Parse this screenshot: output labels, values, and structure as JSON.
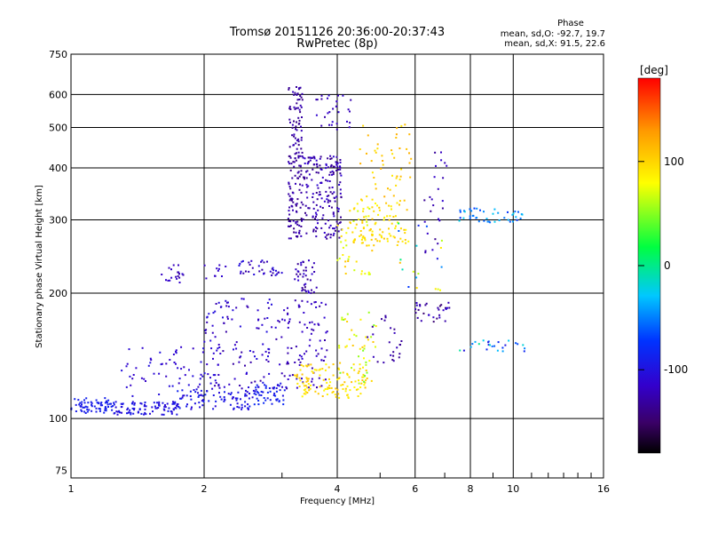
{
  "chart_data": {
    "type": "scatter",
    "title": "Tromsø 20151126 20:36:00-20:37:43",
    "subtitle": "RwPretec (8p)",
    "xlabel": "Frequency [MHz]",
    "ylabel": "Stationary phase Virtual Height [km]",
    "x_scale": "log",
    "y_scale": "log",
    "xlim": [
      1,
      16
    ],
    "ylim": [
      72,
      750
    ],
    "x_ticks": [
      1,
      2,
      4,
      6,
      8,
      10,
      16
    ],
    "y_ticks": [
      75,
      100,
      200,
      300,
      400,
      500,
      600,
      750
    ],
    "x_minor_ticks": [
      3,
      5,
      7,
      9,
      11,
      12,
      13,
      14,
      15
    ],
    "grid": true,
    "stats": {
      "heading": "Phase",
      "line_o": "mean, sd,O: -92.7, 19.7",
      "line_x": "mean, sd,X:  91.5, 22.6"
    },
    "colorbar": {
      "label": "[deg]",
      "range": [
        -180,
        180
      ],
      "ticks": [
        100,
        0,
        -100
      ]
    },
    "series": [
      {
        "clusters": [
          {
            "x": [
              1.0,
              1.25
            ],
            "y": [
              103,
              112
            ],
            "phase": [
              -85,
              -95
            ],
            "n": 70
          },
          {
            "x": [
              1.25,
              1.75
            ],
            "y": [
              102,
              110
            ],
            "phase": [
              -90,
              -110
            ],
            "n": 90
          },
          {
            "x": [
              1.7,
              2.6
            ],
            "y": [
              105,
              118
            ],
            "phase": [
              -85,
              -110
            ],
            "n": 90
          },
          {
            "x": [
              2.6,
              3.1
            ],
            "y": [
              108,
              122
            ],
            "phase": [
              -80,
              -100
            ],
            "n": 50
          },
          {
            "x": [
              1.3,
              2.2
            ],
            "y": [
              112,
              150
            ],
            "phase": [
              -100,
              -120
            ],
            "n": 70
          },
          {
            "x": [
              2.0,
              3.0
            ],
            "y": [
              118,
              195
            ],
            "phase": [
              -100,
              -130
            ],
            "n": 110
          },
          {
            "x": [
              3.0,
              3.8
            ],
            "y": [
              118,
              195
            ],
            "phase": [
              -110,
              -130
            ],
            "n": 90
          },
          {
            "x": [
              3.1,
              3.35
            ],
            "y": [
              270,
              630
            ],
            "phase": [
              -120,
              -140
            ],
            "n": 160
          },
          {
            "x": [
              3.35,
              4.1
            ],
            "y": [
              270,
              430
            ],
            "phase": [
              -110,
              -140
            ],
            "n": 180
          },
          {
            "x": [
              3.5,
              4.3
            ],
            "y": [
              490,
              600
            ],
            "phase": [
              -110,
              -130
            ],
            "n": 30
          },
          {
            "x": [
              3.2,
              3.6
            ],
            "y": [
              200,
              240
            ],
            "phase": [
              -110,
              -140
            ],
            "n": 40
          },
          {
            "x": [
              1.6,
              1.8
            ],
            "y": [
              210,
              235
            ],
            "phase": [
              -110,
              -130
            ],
            "n": 20
          },
          {
            "x": [
              2.0,
              2.25
            ],
            "y": [
              215,
              235
            ],
            "phase": [
              -110,
              -120
            ],
            "n": 10
          },
          {
            "x": [
              2.4,
              3.0
            ],
            "y": [
              220,
              240
            ],
            "phase": [
              -100,
              -130
            ],
            "n": 35
          },
          {
            "x": [
              3.2,
              4.7
            ],
            "y": [
              112,
              135
            ],
            "phase": [
              80,
              110
            ],
            "n": 120
          },
          {
            "x": [
              4.0,
              4.9
            ],
            "y": [
              120,
              180
            ],
            "phase": [
              40,
              110
            ],
            "n": 45
          },
          {
            "x": [
              4.3,
              5.8
            ],
            "y": [
              260,
              330
            ],
            "phase": [
              80,
              110
            ],
            "n": 90
          },
          {
            "x": [
              4.5,
              5.9
            ],
            "y": [
              330,
              520
            ],
            "phase": [
              90,
              120
            ],
            "n": 50
          },
          {
            "x": [
              4.0,
              4.8
            ],
            "y": [
              220,
              330
            ],
            "phase": [
              60,
              110
            ],
            "n": 45
          },
          {
            "x": [
              6.0,
              7.2
            ],
            "y": [
              170,
              190
            ],
            "phase": [
              -110,
              -150
            ],
            "n": 30
          },
          {
            "x": [
              6.3,
              7.2
            ],
            "y": [
              250,
              450
            ],
            "phase": [
              -110,
              -140
            ],
            "n": 25
          },
          {
            "x": [
              7.5,
              10.6
            ],
            "y": [
              295,
              320
            ],
            "phase": [
              -20,
              -80
            ],
            "n": 45
          },
          {
            "x": [
              7.5,
              10.8
            ],
            "y": [
              145,
              155
            ],
            "phase": [
              10,
              -100
            ],
            "n": 25
          },
          {
            "x": [
              4.6,
              5.6
            ],
            "y": [
              135,
              180
            ],
            "phase": [
              -120,
              -140
            ],
            "n": 25
          },
          {
            "x": [
              5.5,
              7.0
            ],
            "y": [
              200,
              300
            ],
            "phase": [
              -100,
              120
            ],
            "n": 20
          }
        ]
      }
    ]
  }
}
